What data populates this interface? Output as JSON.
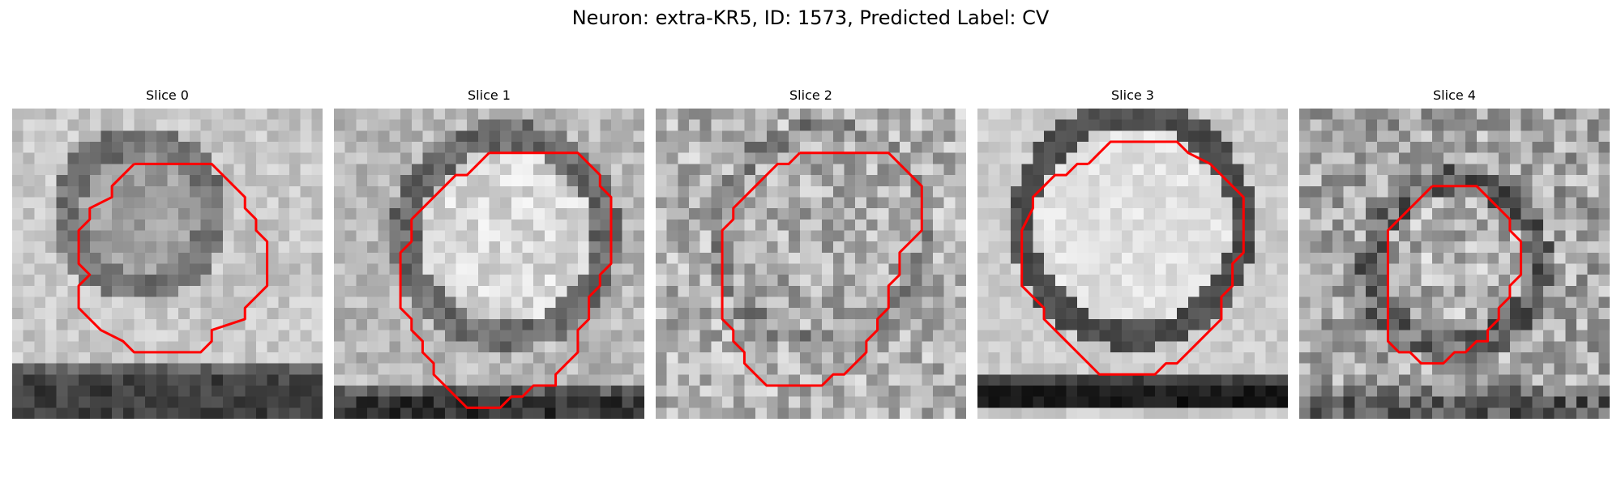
{
  "figure": {
    "title": "Neuron: extra-KR5, ID: 1573, Predicted Label: CV"
  },
  "colors": {
    "contour": "#ff0000",
    "background": "#ffffff"
  },
  "panels": [
    {
      "title": "Slice 0"
    },
    {
      "title": "Slice 1"
    },
    {
      "title": "Slice 2"
    },
    {
      "title": "Slice 3"
    },
    {
      "title": "Slice 4"
    }
  ]
}
